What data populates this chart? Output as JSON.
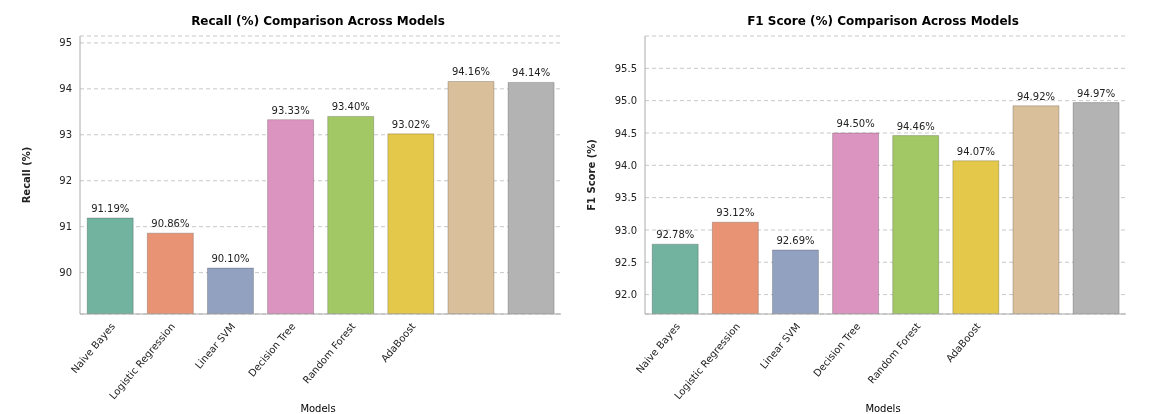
{
  "chart_data": [
    {
      "type": "bar",
      "title": "Recall (%) Comparison Across Models",
      "xlabel": "Models",
      "ylabel": "Recall (%)",
      "categories": [
        "Naive Bayes",
        "Logistic Regression",
        "Linear SVM",
        "Decision Tree",
        "Random Forest",
        "AdaBoost",
        null,
        null
      ],
      "values": [
        91.19,
        90.86,
        90.1,
        93.33,
        93.4,
        93.02,
        94.16,
        94.14
      ],
      "colors": [
        "#72b3a0",
        "#e89474",
        "#93a1c0",
        "#db93bf",
        "#a2c765",
        "#e3c84a",
        "#d9c09a",
        "#b3b3b3"
      ],
      "value_labels": [
        "91.19%",
        "90.86%",
        "90.10%",
        "93.33%",
        "93.40%",
        "93.02%",
        "94.16%",
        "94.14%"
      ],
      "ylim": [
        89.1,
        95.15
      ],
      "yticks": [
        90,
        91,
        92,
        93,
        94,
        95
      ],
      "grid": "y",
      "legend": false
    },
    {
      "type": "bar",
      "title": "F1 Score (%) Comparison Across Models",
      "xlabel": "Models",
      "ylabel": "F1 Score (%)",
      "categories": [
        "Naive Bayes",
        "Logistic Regression",
        "Linear SVM",
        "Decision Tree",
        "Random Forest",
        "AdaBoost",
        null,
        null
      ],
      "values": [
        92.78,
        93.12,
        92.69,
        94.5,
        94.46,
        94.07,
        94.92,
        94.97
      ],
      "colors": [
        "#72b3a0",
        "#e89474",
        "#93a1c0",
        "#db93bf",
        "#a2c765",
        "#e3c84a",
        "#d9c09a",
        "#b3b3b3"
      ],
      "value_labels": [
        "92.78%",
        "93.12%",
        "92.69%",
        "94.50%",
        "94.46%",
        "94.07%",
        "94.92%",
        "94.97%"
      ],
      "ylim": [
        91.7,
        96.0
      ],
      "yticks": [
        {
          "value": 92,
          "label": "92.0"
        },
        {
          "value": 92.5,
          "label": "92.5"
        },
        {
          "value": 93,
          "label": "93.0"
        },
        {
          "value": 93.5,
          "label": "93.5"
        },
        {
          "value": 94,
          "label": "94.0"
        },
        {
          "value": 94.5,
          "label": "94.5"
        },
        {
          "value": 95,
          "label": "95.0"
        },
        {
          "value": 95.5,
          "label": "95.5"
        }
      ],
      "grid": "y",
      "legend": false
    }
  ]
}
